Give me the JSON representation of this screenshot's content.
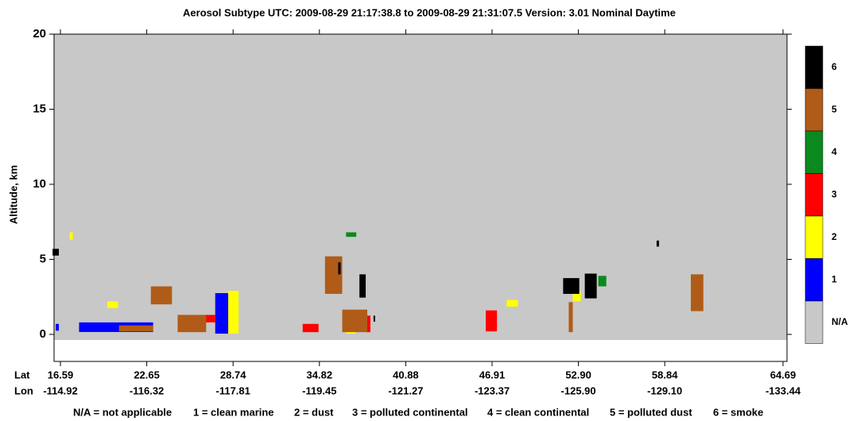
{
  "chart_data": {
    "type": "curtain",
    "title": "Aerosol Subtype    UTC:  2009-08-29   21:17:38.8  to  2009-08-29   21:31:07.5    Version: 3.01  Nominal Daytime",
    "ylabel": "Altitude, km",
    "ylim": [
      -1.8,
      20
    ],
    "yticks": [
      0,
      5,
      10,
      15,
      20
    ],
    "xlabel": "Lat",
    "x2label": "Lon",
    "xticks": [
      16.59,
      22.65,
      28.74,
      34.82,
      40.88,
      46.91,
      {
        "value": 52.9,
        "label": "52.90"
      },
      58.84,
      64.69
    ],
    "lon_ticks": [
      -114.92,
      -116.32,
      -117.81,
      -119.45,
      -121.27,
      -123.37,
      {
        "value": -125.9,
        "label": "-125.90"
      },
      {
        "value": -129.1,
        "label": "-129.10"
      },
      -133.44
    ],
    "background_color": "#c8c8c8",
    "colorbar": [
      {
        "label": 6,
        "color": "#000000"
      },
      {
        "label": 5,
        "color": "#b05c18"
      },
      {
        "label": 4,
        "color": "#0a8a1e"
      },
      {
        "label": 3,
        "color": "#ff0000"
      },
      {
        "label": 2,
        "color": "#ffff00"
      },
      {
        "label": 1,
        "color": "#0000ff"
      },
      {
        "label": "N/A",
        "color": "#c8c8c8"
      }
    ],
    "legend": [
      "N/A = not applicable",
      "1 = clean marine",
      "2 = dust",
      "3 = polluted continental",
      "4 = clean continental",
      "5 = polluted dust",
      "6 = smoke"
    ],
    "series": [
      {
        "color": "#0000ff",
        "boxes": [
          [
            16.26,
            16.48,
            0.25,
            0.7
          ],
          [
            17.9,
            23.1,
            0.16,
            0.8
          ],
          [
            27.48,
            28.4,
            0.05,
            2.75
          ]
        ]
      },
      {
        "color": "#ffff00",
        "boxes": [
          [
            28.4,
            29.13,
            0.05,
            2.9
          ],
          [
            19.87,
            20.63,
            1.75,
            2.2
          ],
          [
            17.24,
            17.46,
            6.3,
            6.8
          ],
          [
            36.69,
            37.35,
            0.05,
            0.5
          ],
          [
            47.92,
            48.7,
            1.85,
            2.3
          ],
          [
            52.51,
            53.06,
            2.2,
            2.9
          ]
        ]
      },
      {
        "color": "#ff0000",
        "boxes": [
          [
            26.79,
            27.48,
            0.8,
            1.3
          ],
          [
            33.64,
            34.76,
            0.15,
            0.7
          ],
          [
            38.07,
            38.4,
            0.15,
            1.25
          ],
          [
            46.47,
            47.25,
            0.2,
            1.6
          ]
        ]
      },
      {
        "color": "#0a8a1e",
        "boxes": [
          [
            36.69,
            37.41,
            6.5,
            6.8
          ],
          [
            54.27,
            54.82,
            3.2,
            3.9
          ]
        ]
      },
      {
        "color": "#b05c18",
        "boxes": [
          [
            22.94,
            24.43,
            2.0,
            3.2
          ],
          [
            24.83,
            26.84,
            0.15,
            1.3
          ],
          [
            20.7,
            23.1,
            0.2,
            0.6
          ],
          [
            35.21,
            36.42,
            2.7,
            5.2
          ],
          [
            36.42,
            38.18,
            0.15,
            1.65
          ],
          [
            52.23,
            52.51,
            0.15,
            2.15
          ],
          [
            60.13,
            60.75,
            1.55,
            4.0
          ]
        ]
      },
      {
        "color": "#000000",
        "boxes": [
          [
            16.04,
            16.48,
            5.25,
            5.7
          ],
          [
            37.63,
            38.07,
            2.45,
            4.0
          ],
          [
            38.62,
            38.73,
            0.85,
            1.25
          ],
          [
            51.84,
            52.96,
            2.7,
            3.75
          ],
          [
            53.34,
            54.16,
            2.4,
            4.05
          ],
          [
            58.28,
            58.45,
            5.85,
            6.25
          ],
          [
            36.14,
            36.31,
            4.0,
            4.8
          ]
        ]
      }
    ]
  }
}
